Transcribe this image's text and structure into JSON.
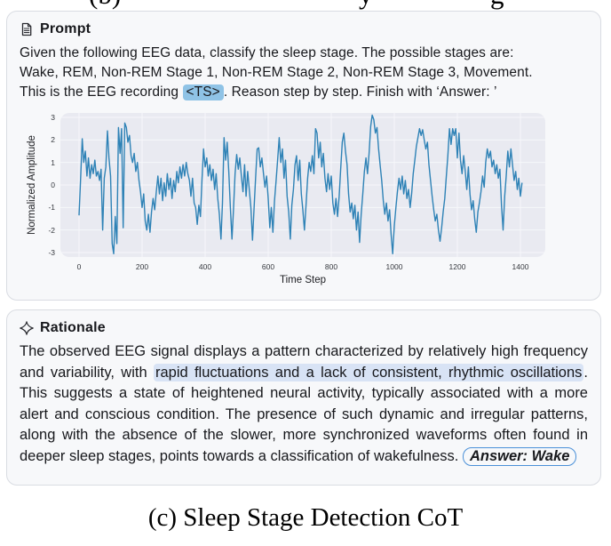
{
  "top_clipped_caption": {
    "fragments": [
      {
        "text": "(b)",
        "x": 100
      },
      {
        "text": "y",
        "x": 404
      },
      {
        "text": "g",
        "x": 552
      }
    ]
  },
  "prompt_card": {
    "header": {
      "icon": "document-icon",
      "label": "Prompt"
    },
    "body_segments": [
      {
        "t": "Given the following EEG data, classify the sleep stage. The possible stages are:",
        "br": true
      },
      {
        "t": "Wake, REM, Non-REM Stage 1, Non-REM Stage 2, Non-REM Stage 3, Movement.",
        "br": true
      },
      {
        "t": "This is the EEG recording "
      },
      {
        "t": "<TS>",
        "hl": "strong"
      },
      {
        "t": ". Reason step by step. Finish with ‘Answer: ’"
      }
    ]
  },
  "chart_data": {
    "type": "line",
    "title": "",
    "xlabel": "Time Step",
    "ylabel": "Normalized Amplitude",
    "x_ticks": [
      0,
      200,
      400,
      600,
      800,
      1000,
      1200,
      1400
    ],
    "y_ticks": [
      3,
      2,
      1,
      0,
      -1,
      -2,
      -3
    ],
    "xlim": [
      0,
      1405
    ],
    "ylim": [
      -3.2,
      3.2
    ],
    "grid": true,
    "legend": "none",
    "x_step": 5,
    "values": [
      -1.35,
      0.3,
      2.05,
      1.0,
      1.5,
      0.4,
      1.2,
      0.3,
      0.9,
      0.5,
      1.1,
      0.4,
      0.6,
      0.2,
      0.7,
      -2.0,
      0.3,
      0.8,
      2.4,
      1.2,
      0.4,
      -2.6,
      -3.05,
      -1.4,
      -2.6,
      2.55,
      1.4,
      2.5,
      -1.9,
      2.75,
      2.55,
      1.9,
      2.2,
      1.3,
      1.0,
      1.4,
      0.6,
      1.0,
      0.2,
      -0.3,
      -1.0,
      -0.4,
      -1.6,
      -2.0,
      -1.3,
      -2.1,
      -1.2,
      -0.6,
      -1.1,
      -0.3,
      0.4,
      -0.4,
      0.3,
      -0.7,
      0.1,
      -0.5,
      0.5,
      -0.2,
      0.3,
      -0.6,
      0.2,
      -0.3,
      0.6,
      0.1,
      0.8,
      0.3,
      0.9,
      0.4,
      1.0,
      0.5,
      0.2,
      -0.5,
      0.3,
      -0.8,
      -1.0,
      -1.75,
      -0.9,
      -1.4,
      0.2,
      1.6,
      0.8,
      1.2,
      0.4,
      0.9,
      0.2,
      0.7,
      -0.2,
      0.5,
      -0.6,
      -1.3,
      -2.4,
      -0.8,
      2.1,
      1.1,
      1.9,
      0.6,
      -1.0,
      -2.4,
      -1.1,
      0.5,
      1.35,
      0.7,
      1.2,
      0.4,
      -0.3,
      0.9,
      -0.5,
      0.6,
      -0.2,
      -1.0,
      -2.45,
      -1.1,
      0.3,
      1.6,
      1.65,
      0.8,
      1.2,
      0.5,
      -0.1,
      0.4,
      -0.6,
      -1.9,
      -1.0,
      -2.1,
      -0.7,
      0.2,
      1.1,
      2.1,
      1.0,
      1.6,
      0.3,
      1.1,
      -0.5,
      -1.2,
      -2.4,
      -0.9,
      -0.2,
      0.9,
      1.3,
      0.2,
      1.1,
      -0.4,
      -1.1,
      -2.0,
      -0.9,
      0.3,
      1.0,
      0.6,
      1.3,
      0.5,
      2.5,
      2.3,
      1.2,
      1.9,
      0.8,
      1.4,
      0.3,
      -0.3,
      0.5,
      -0.2,
      0.4,
      -0.8,
      -1.3,
      -0.6,
      -1.4,
      -0.5,
      0.7,
      1.9,
      2.3,
      1.5,
      0.9,
      -0.4,
      -1.2,
      -0.8,
      -1.5,
      -0.9,
      -2.0,
      -1.2,
      -2.55,
      -1.3,
      -0.4,
      0.6,
      1.2,
      0.5,
      1.4,
      2.6,
      3.1,
      2.9,
      2.3,
      2.55,
      1.6,
      0.9,
      0.2,
      -0.7,
      -1.3,
      -0.8,
      -1.6,
      -1.1,
      -2.2,
      -3.05,
      -1.8,
      -1.0,
      -0.3,
      0.3,
      -0.2,
      0.4,
      -0.4,
      0.2,
      -0.6,
      -0.2,
      -1.0,
      -0.4,
      0.5,
      1.1,
      1.7,
      2.1,
      2.5,
      2.2,
      2.45,
      2.0,
      1.6,
      1.9,
      0.9,
      0.2,
      -0.5,
      -1.1,
      -1.6,
      -1.3,
      -2.0,
      -2.5,
      -1.9,
      -1.2,
      -0.6,
      0.4,
      1.3,
      2.5,
      1.8,
      2.5,
      2.2,
      2.5,
      1.2,
      2.3,
      1.1,
      0.5,
      1.3,
      0.6,
      -0.2,
      0.8,
      -0.4,
      -1.1,
      -0.7,
      -1.5,
      -2.1,
      -1.2,
      -0.8,
      -0.3,
      0.4,
      -0.1,
      1.0,
      1.6,
      1.2,
      1.5,
      0.8,
      1.1,
      0.5,
      0.9,
      0.3,
      0.7,
      -0.9,
      -2.0,
      -0.5,
      0.4,
      1.5,
      0.8,
      1.6,
      0.9,
      0.2,
      0.6,
      -0.2,
      0.3,
      -0.5,
      0.1
    ]
  },
  "rationale_card": {
    "header": {
      "icon": "sparkle-icon",
      "label": "Rationale"
    },
    "body_segments": [
      {
        "t": "The observed EEG signal displays a pattern characterized by relatively high frequency and variability, with "
      },
      {
        "t": "rapid fluctuations and a lack of consistent, rhythmic oscillations",
        "hl": "light"
      },
      {
        "t": ". This suggests a state of heightened neural activity, typically associated with a more alert and conscious condition. The presence of such dynamic and irregular patterns, along with the absence of the slower, more synchronized waveforms often found in deeper sleep stages, points towards a classification of wakefulness. "
      },
      {
        "t": "Answer: Wake",
        "hl": "answer"
      }
    ]
  },
  "caption": "(c) Sleep Stage Detection CoT",
  "colors": {
    "card_bg": "#f7f8fa",
    "card_border": "#d9dce2",
    "text": "#17181c",
    "ts_bg": "#8fc3e6",
    "light_hl": "#d8e3f5",
    "answer_border": "#4a90d8",
    "line": "#2e82b6",
    "plot_bg": "#e9eaf1",
    "grid": "#f6f7fa",
    "tick": "#35383e"
  }
}
